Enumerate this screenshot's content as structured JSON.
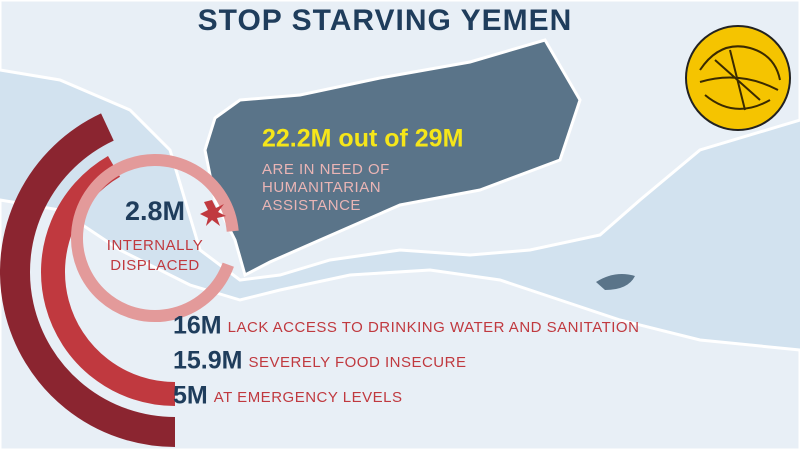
{
  "title": "STOP STARVING YEMEN",
  "highlight": {
    "headline": "22.2M out of 29M",
    "description": [
      "ARE IN NEED OF",
      "HUMANITARIAN",
      "ASSISTANCE"
    ]
  },
  "displaced": {
    "value": "2.8M",
    "label": [
      "INTERNALLY",
      "DISPLACED"
    ]
  },
  "stats": [
    {
      "value": "16M",
      "label": "LACK ACCESS TO DRINKING WATER AND SANITATION"
    },
    {
      "value": "15.9M",
      "label": "SEVERELY FOOD INSECURE"
    },
    {
      "value": "5M",
      "label": "AT EMERGENCY LEVELS"
    }
  ]
}
